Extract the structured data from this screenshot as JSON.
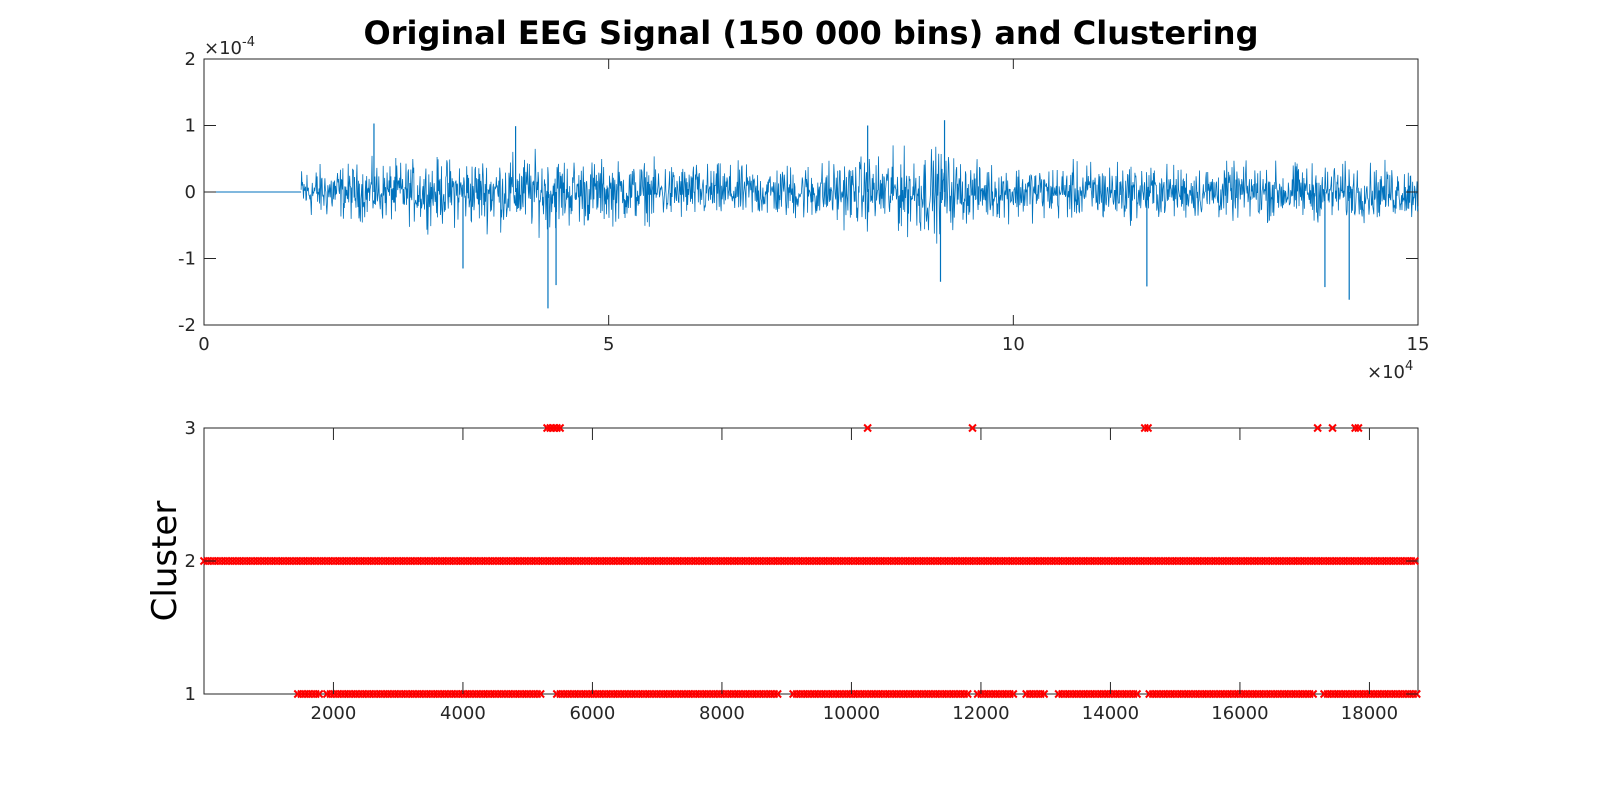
{
  "chart_data": [
    {
      "type": "line",
      "title": "Original EEG Signal (150 000 bins) and Clustering",
      "xlabel": "",
      "ylabel": "",
      "xlim": [
        0,
        150000
      ],
      "ylim": [
        -0.0002,
        0.0002
      ],
      "x_ticks": [
        0,
        5,
        10,
        15
      ],
      "x_tick_labels": [
        "0",
        "5",
        "10",
        "15"
      ],
      "x_exponent": "10",
      "x_exponent_power": "4",
      "y_ticks": [
        -2,
        -1,
        0,
        1,
        2
      ],
      "y_tick_labels": [
        "-2",
        "-1",
        "0",
        "1",
        "2"
      ],
      "y_exponent": "10",
      "y_exponent_power": "-4",
      "grid": false,
      "line_color": "#0072BD",
      "series": [
        {
          "signal_start": 12000,
          "flat_value": 0,
          "envelope": [
            {
              "x": 12000,
              "amp": 5.5e-05
            },
            {
              "x": 20000,
              "amp": 6e-05
            },
            {
              "x": 30000,
              "amp": 7e-05
            },
            {
              "x": 42000,
              "amp": 8e-05
            },
            {
              "x": 50000,
              "amp": 6.5e-05
            },
            {
              "x": 60000,
              "amp": 6e-05
            },
            {
              "x": 70000,
              "amp": 5.5e-05
            },
            {
              "x": 80000,
              "amp": 7e-05
            },
            {
              "x": 90000,
              "amp": 9.5e-05
            },
            {
              "x": 95000,
              "amp": 6e-05
            },
            {
              "x": 105000,
              "amp": 5.5e-05
            },
            {
              "x": 110000,
              "amp": 6.5e-05
            },
            {
              "x": 120000,
              "amp": 5.5e-05
            },
            {
              "x": 130000,
              "amp": 6e-05
            },
            {
              "x": 140000,
              "amp": 6e-05
            },
            {
              "x": 150000,
              "amp": 5.5e-05
            }
          ],
          "spikes": [
            {
              "x": 42500,
              "y": -0.000175
            },
            {
              "x": 43500,
              "y": -0.00014
            },
            {
              "x": 32000,
              "y": -0.000115
            },
            {
              "x": 116500,
              "y": -0.000142
            },
            {
              "x": 138500,
              "y": -0.000143
            },
            {
              "x": 141500,
              "y": -0.000162
            },
            {
              "x": 91000,
              "y": -0.000135
            },
            {
              "x": 21000,
              "y": 0.000103
            },
            {
              "x": 91500,
              "y": 0.000108
            },
            {
              "x": 82000,
              "y": 0.0001
            },
            {
              "x": 38500,
              "y": 9.9e-05
            }
          ]
        }
      ]
    },
    {
      "type": "scatter",
      "title": "",
      "xlabel": "",
      "ylabel": "Cluster",
      "xlim": [
        1,
        18750
      ],
      "ylim": [
        1,
        3
      ],
      "x_ticks": [
        2000,
        4000,
        6000,
        8000,
        10000,
        12000,
        14000,
        16000,
        18000
      ],
      "x_tick_labels": [
        "2000",
        "4000",
        "6000",
        "8000",
        "10000",
        "12000",
        "14000",
        "16000",
        "18000"
      ],
      "y_ticks": [
        1,
        2,
        3
      ],
      "y_tick_labels": [
        "1",
        "2",
        "3"
      ],
      "grid": false,
      "marker": "x",
      "marker_color": "#FF0000",
      "series": [
        {
          "cluster_2_range": [
            1,
            18750
          ],
          "cluster_1_segments": [
            [
              1450,
              1800
            ],
            [
              1900,
              5250
            ],
            [
              5450,
              8900
            ],
            [
              9100,
              11800
            ],
            [
              11950,
              12550
            ],
            [
              12700,
              13000
            ],
            [
              13200,
              14450
            ],
            [
              14600,
              17150
            ],
            [
              17300,
              18750
            ]
          ],
          "cluster_3_points": [
            5300,
            5350,
            5400,
            5450,
            5500,
            10250,
            11870,
            14530,
            14580,
            17200,
            17430,
            17780,
            17830
          ]
        }
      ]
    }
  ]
}
